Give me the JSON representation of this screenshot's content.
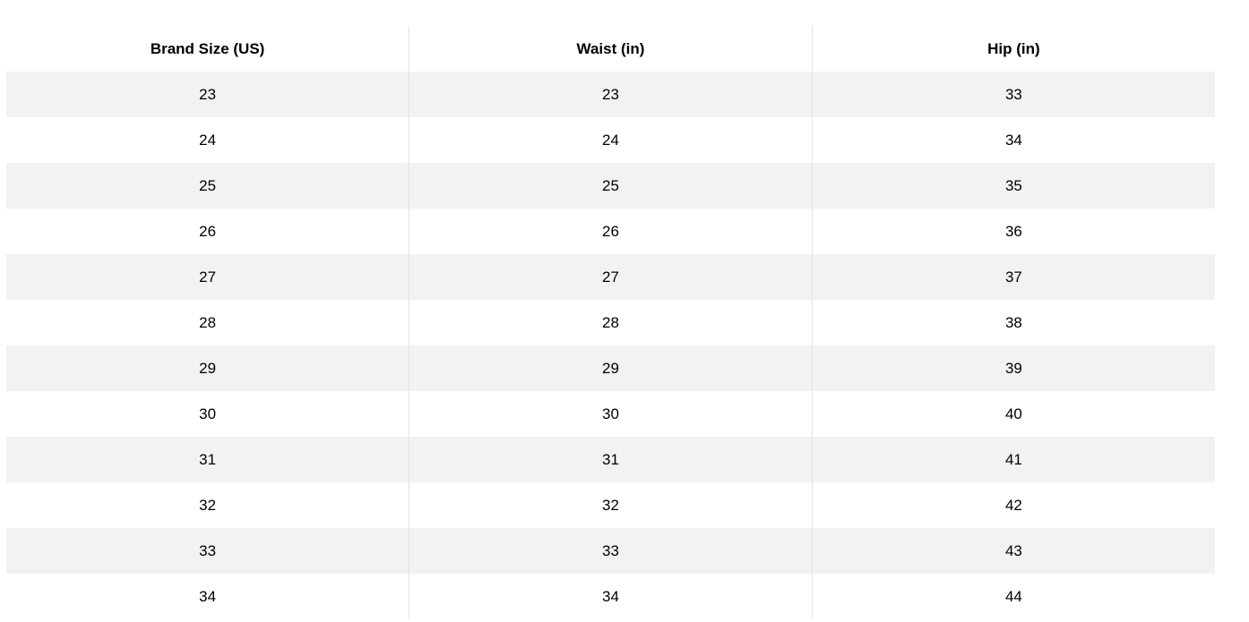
{
  "table": {
    "headers": [
      "Brand Size (US)",
      "Waist (in)",
      "Hip (in)"
    ],
    "rows": [
      [
        "23",
        "23",
        "33"
      ],
      [
        "24",
        "24",
        "34"
      ],
      [
        "25",
        "25",
        "35"
      ],
      [
        "26",
        "26",
        "36"
      ],
      [
        "27",
        "27",
        "37"
      ],
      [
        "28",
        "28",
        "38"
      ],
      [
        "29",
        "29",
        "39"
      ],
      [
        "30",
        "30",
        "40"
      ],
      [
        "31",
        "31",
        "41"
      ],
      [
        "32",
        "32",
        "42"
      ],
      [
        "33",
        "33",
        "43"
      ],
      [
        "34",
        "34",
        "44"
      ]
    ]
  },
  "colors": {
    "stripe": "#f2f2f2",
    "divider": "#e3e3e3"
  }
}
